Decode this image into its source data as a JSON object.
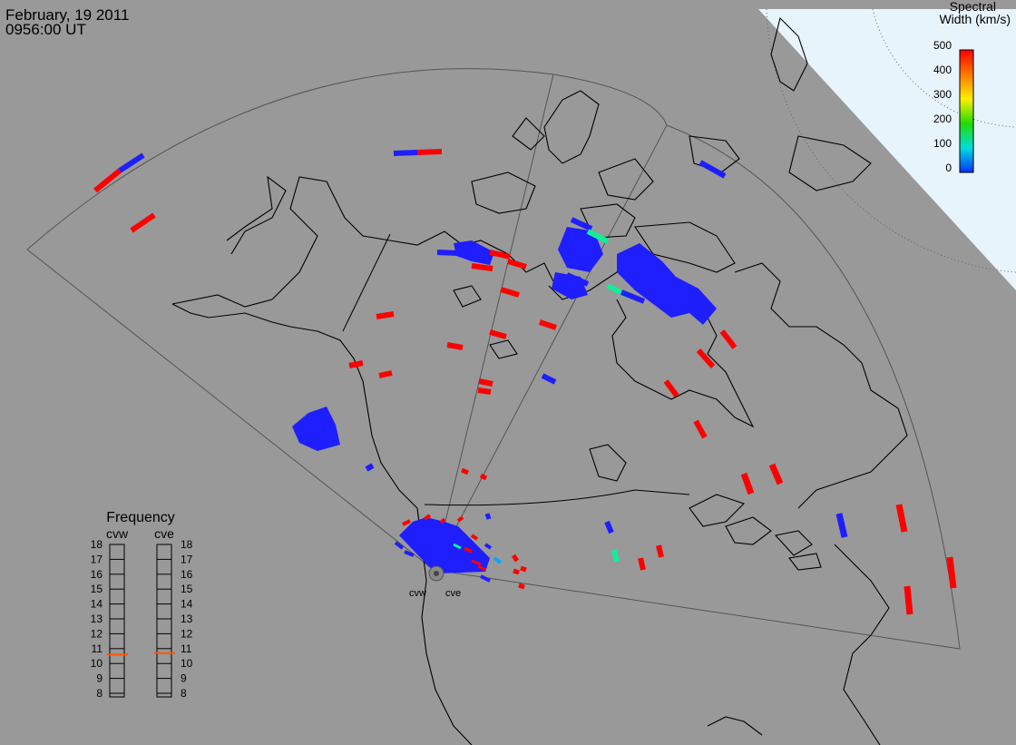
{
  "header": {
    "date": "February, 19 2011",
    "time": "0956:00 UT"
  },
  "colorbar": {
    "title_line1": "Spectral",
    "title_line2": "Width (km/s)",
    "ticks": [
      "500",
      "400",
      "300",
      "200",
      "100",
      "0"
    ],
    "colors": [
      "#ff0000",
      "#ff7700",
      "#ffee00",
      "#22dd00",
      "#00dddd",
      "#0033ff"
    ]
  },
  "frequency": {
    "title": "Frequency",
    "radars": [
      "cvw",
      "cve"
    ],
    "scale": [
      "18",
      "17",
      "16",
      "15",
      "14",
      "13",
      "12",
      "11",
      "10",
      "9",
      "8"
    ],
    "cvw_mhz": 10.6,
    "cve_mhz": 10.7,
    "marker_color": "#ff5500"
  },
  "radar_site_labels": [
    "cvw",
    "cve"
  ],
  "colors": {
    "background": "#999999",
    "pole_region": "#e8f4fc",
    "low_width": "#1e1eff",
    "high_width": "#ff0000",
    "mid_width": "#11ee99"
  }
}
